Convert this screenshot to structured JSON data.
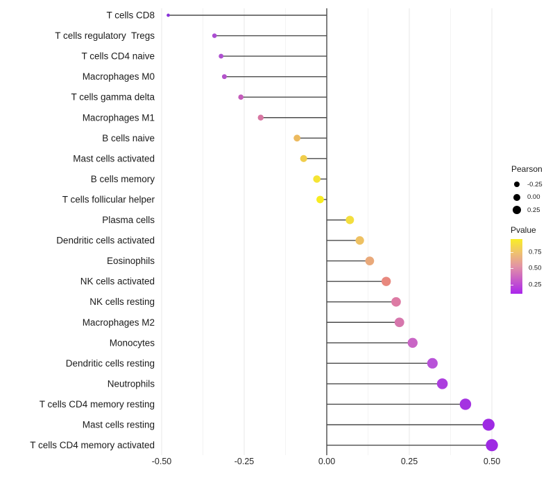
{
  "chart_data": {
    "type": "lollipop",
    "orientation": "horizontal",
    "title": "",
    "xlabel": "",
    "ylabel": "",
    "categories": [
      "T cells CD8",
      "T cells regulatory  Tregs",
      "T cells CD4 naive",
      "Macrophages M0",
      "T cells gamma delta",
      "Macrophages M1",
      "B cells naive",
      "Mast cells activated",
      "B cells memory",
      "T cells follicular helper",
      "Plasma cells",
      "Dendritic cells activated",
      "Eosinophils",
      "NK cells activated",
      "NK cells resting",
      "Macrophages M2",
      "Monocytes",
      "Dendritic cells resting",
      "Neutrophils",
      "T cells CD4 memory resting",
      "Mast cells resting",
      "T cells CD4 memory activated"
    ],
    "series": [
      {
        "name": "Pearson",
        "values": [
          -0.48,
          -0.34,
          -0.32,
          -0.31,
          -0.26,
          -0.2,
          -0.09,
          -0.07,
          -0.03,
          -0.02,
          0.07,
          0.1,
          0.13,
          0.18,
          0.21,
          0.22,
          0.26,
          0.32,
          0.35,
          0.42,
          0.49,
          0.5
        ]
      }
    ],
    "point_colors": [
      "#8833D8",
      "#AB4DD2",
      "#AE50D0",
      "#B353CA",
      "#C45BBB",
      "#D776A2",
      "#ECBA5F",
      "#F0CD4B",
      "#F5E434",
      "#F8EC20",
      "#F3DE3E",
      "#EEC162",
      "#E9A97A",
      "#E8887E",
      "#DD7BA4",
      "#D676AC",
      "#C965C5",
      "#B852D8",
      "#AC3EDE",
      "#A433E1",
      "#9E2AE3",
      "#9E2AE3"
    ],
    "x_ticks": [
      -0.5,
      -0.25,
      0.0,
      0.25,
      0.5
    ],
    "x_tick_labels": [
      "-0.50",
      "-0.25",
      "0.00",
      "0.25",
      "0.50"
    ],
    "x_minor_ticks": [
      -0.375,
      -0.125,
      0.125,
      0.375
    ],
    "xlim": [
      -0.515,
      0.515
    ],
    "grid": "vertical major+minor",
    "zero_line": true
  },
  "legend": {
    "pearson": {
      "title": "Pearson",
      "entries": [
        {
          "label": "-0.25"
        },
        {
          "label": "0.00"
        },
        {
          "label": "0.25"
        }
      ]
    },
    "pvalue": {
      "title": "Pvalue",
      "tick_labels": [
        "0.75",
        "0.50",
        "0.25"
      ],
      "gradient_stops": [
        "#F9EE26",
        "#EFC26F",
        "#E293A5",
        "#C75BC8",
        "#AA25EC"
      ]
    }
  },
  "colors": {
    "zero_line": "#2b2b2b",
    "stem": "#4a4a4a",
    "grid_major": "#e7e7e7",
    "grid_minor": "#f3f3f3",
    "axis_text": "#262626",
    "background": "#ffffff"
  }
}
